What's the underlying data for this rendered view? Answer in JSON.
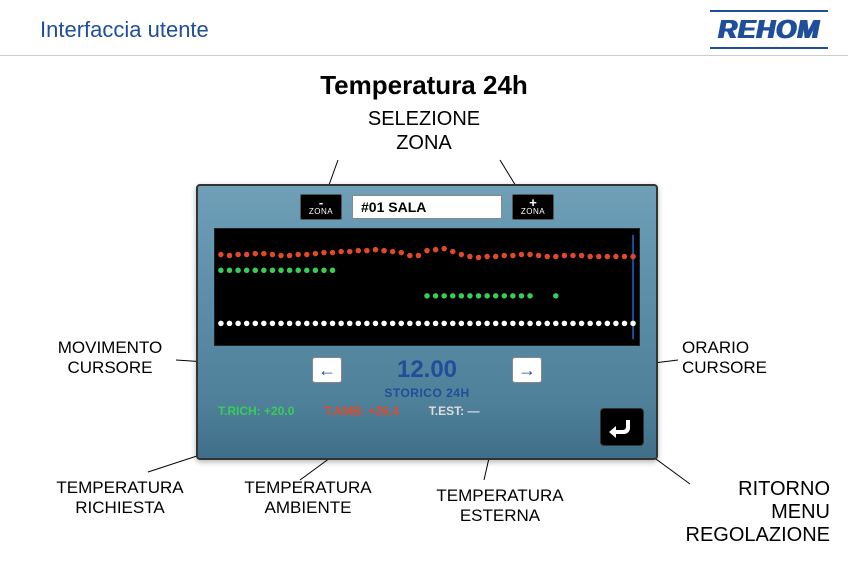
{
  "header": {
    "title": "Interfaccia utente",
    "logo": "REHOM"
  },
  "page_title": "Temperatura 24h",
  "annotations": {
    "selezione_zona": "SELEZIONE\nZONA",
    "movimento_cursore": "MOVIMENTO\nCURSORE",
    "orario_cursore": "ORARIO\nCURSORE",
    "temp_richiesta": "TEMPERATURA\nRICHIESTA",
    "temp_ambiente": "TEMPERATURA\nAMBIENTE",
    "temp_esterna": "TEMPERATURA\nESTERNA",
    "ritorno_menu": "RITORNO\nMENU\nREGOLAZIONE"
  },
  "panel": {
    "zone_minus": {
      "sign": "-",
      "label": "ZONA"
    },
    "zone_plus": {
      "sign": "+",
      "label": "ZONA"
    },
    "zone_value": "#01 SALA",
    "time_value": "12.00",
    "storico_label": "STORICO 24H",
    "t_rich_label": "T.RICH:",
    "t_rich_value": "+20.0",
    "t_amb_label": "T.AMB:",
    "t_amb_value": "+26.4",
    "t_est_label": "T.EST:",
    "t_est_value": "—"
  },
  "chart": {
    "type": "scatter-time-series",
    "background": "#000000",
    "point_radius": 2.8,
    "series": {
      "ambient": {
        "color": "#e04a2a",
        "y": [
          26,
          27,
          26,
          26,
          25,
          25,
          26,
          27,
          27,
          26,
          26,
          25,
          24,
          24,
          23,
          23,
          22,
          22,
          21,
          22,
          23,
          24,
          27,
          27,
          22,
          21,
          20,
          23,
          26,
          28,
          29,
          28,
          28,
          27,
          27,
          26,
          26,
          27,
          28,
          28,
          27,
          27,
          27,
          28,
          28,
          28,
          28,
          28,
          28
        ]
      },
      "setpoint": {
        "color": "#39cc5a",
        "y": [
          42,
          42,
          42,
          42,
          42,
          42,
          42,
          42,
          42,
          42,
          42,
          42,
          42,
          42,
          null,
          null,
          null,
          null,
          null,
          null,
          null,
          null,
          null,
          null,
          68,
          68,
          68,
          68,
          68,
          68,
          68,
          68,
          68,
          68,
          68,
          68,
          68,
          null,
          null,
          68,
          null,
          null,
          null,
          null,
          null,
          null,
          null,
          null,
          null
        ]
      },
      "external": {
        "color": "#ffffff",
        "y": [
          96,
          96,
          96,
          96,
          96,
          96,
          96,
          96,
          96,
          96,
          96,
          96,
          96,
          96,
          96,
          96,
          96,
          96,
          96,
          96,
          96,
          96,
          96,
          96,
          96,
          96,
          96,
          96,
          96,
          96,
          96,
          96,
          96,
          96,
          96,
          96,
          96,
          96,
          96,
          96,
          96,
          96,
          96,
          96,
          96,
          96,
          96,
          96,
          96
        ]
      }
    },
    "cursor": {
      "x_index": 48,
      "color": "#1f4e9b"
    }
  },
  "callout_lines": [
    {
      "from": [
        338,
        160
      ],
      "to": [
        325,
        196
      ],
      "color": "#000"
    },
    {
      "from": [
        500,
        160
      ],
      "to": [
        522,
        196
      ],
      "color": "#000"
    },
    {
      "from": [
        176,
        360
      ],
      "to": [
        282,
        367
      ],
      "color": "#000"
    },
    {
      "from": [
        678,
        360
      ],
      "to": [
        566,
        374
      ],
      "color": "#000"
    },
    {
      "from": [
        148,
        472
      ],
      "to": [
        258,
        436
      ],
      "color": "#000"
    },
    {
      "from": [
        300,
        480
      ],
      "to": [
        360,
        436
      ],
      "color": "#000"
    },
    {
      "from": [
        484,
        480
      ],
      "to": [
        494,
        436
      ],
      "color": "#000"
    },
    {
      "from": [
        690,
        484
      ],
      "to": [
        630,
        440
      ],
      "color": "#000"
    }
  ]
}
